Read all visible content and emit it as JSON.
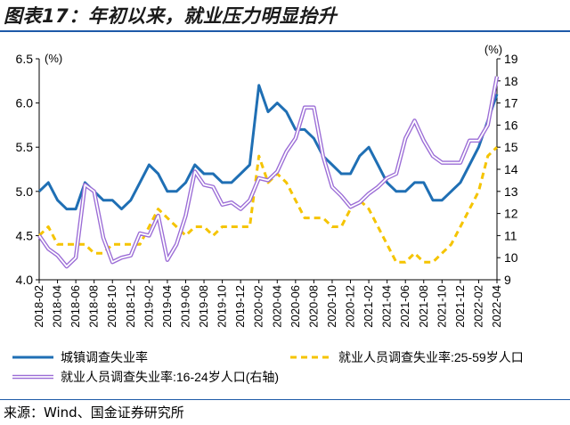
{
  "title": "图表17：年初以来，就业压力明显抬升",
  "source": "来源：Wind、国金证券研究所",
  "chart_data": {
    "type": "line",
    "left_unit": "(%)",
    "right_unit": "(%)",
    "ylim_left": [
      4.0,
      6.5
    ],
    "yticks_left": [
      "4.0",
      "4.5",
      "5.0",
      "5.5",
      "6.0",
      "6.5"
    ],
    "ylim_right": [
      9,
      19
    ],
    "yticks_right": [
      "9",
      "10",
      "11",
      "12",
      "13",
      "14",
      "15",
      "16",
      "17",
      "18",
      "19"
    ],
    "x_tick_labels": [
      "2018-02",
      "2018-04",
      "2018-06",
      "2018-08",
      "2018-10",
      "2018-12",
      "2019-02",
      "2019-04",
      "2019-06",
      "2019-08",
      "2019-10",
      "2019-12",
      "2020-02",
      "2020-04",
      "2020-06",
      "2020-08",
      "2020-10",
      "2020-12",
      "2021-02",
      "2021-04",
      "2021-06",
      "2021-08",
      "2021-10",
      "2021-12",
      "2022-02",
      "2022-04"
    ],
    "series": [
      {
        "name": "城镇调查失业率",
        "axis": "left",
        "color": "#1f6fb4",
        "style": "solid",
        "values": [
          5.0,
          5.1,
          4.9,
          4.8,
          4.8,
          5.1,
          5.0,
          4.9,
          4.9,
          4.8,
          4.9,
          5.1,
          5.3,
          5.2,
          5.0,
          5.0,
          5.1,
          5.3,
          5.2,
          5.2,
          5.1,
          5.1,
          5.2,
          5.3,
          6.2,
          5.9,
          6.0,
          5.9,
          5.7,
          5.7,
          5.6,
          5.4,
          5.3,
          5.2,
          5.2,
          5.4,
          5.5,
          5.3,
          5.1,
          5.0,
          5.0,
          5.1,
          5.1,
          4.9,
          4.9,
          5.0,
          5.1,
          5.3,
          5.5,
          5.8,
          6.1
        ]
      },
      {
        "name": "就业人员调查失业率:25-59岁人口",
        "axis": "left",
        "color": "#f5c400",
        "style": "dashed",
        "values": [
          4.5,
          4.6,
          4.4,
          4.4,
          4.4,
          4.4,
          4.3,
          4.3,
          4.4,
          4.4,
          4.4,
          4.4,
          4.6,
          4.8,
          4.7,
          4.6,
          4.5,
          4.6,
          4.6,
          4.5,
          4.6,
          4.6,
          4.6,
          4.6,
          5.4,
          5.1,
          5.2,
          5.1,
          4.9,
          4.7,
          4.7,
          4.7,
          4.6,
          4.6,
          4.8,
          4.9,
          4.8,
          4.6,
          4.4,
          4.2,
          4.2,
          4.3,
          4.2,
          4.2,
          4.3,
          4.4,
          4.6,
          4.8,
          5.0,
          5.4,
          5.5
        ]
      },
      {
        "name": "就业人员调查失业率:16-24岁人口(右轴)",
        "axis": "right",
        "color": "#9b6cd6",
        "style": "double",
        "values": [
          11.0,
          10.4,
          10.1,
          9.6,
          10.0,
          13.3,
          13.0,
          10.9,
          9.8,
          10.0,
          10.1,
          11.1,
          11.0,
          11.9,
          9.9,
          10.6,
          11.9,
          13.9,
          13.3,
          13.2,
          12.4,
          12.5,
          12.2,
          12.6,
          13.6,
          13.5,
          13.9,
          14.8,
          15.4,
          16.8,
          16.8,
          14.6,
          13.2,
          12.8,
          12.3,
          12.5,
          12.9,
          13.2,
          13.6,
          13.8,
          15.4,
          16.2,
          15.3,
          14.6,
          14.3,
          14.3,
          14.3,
          15.3,
          15.3,
          16.0,
          18.2
        ]
      }
    ],
    "legend": [
      {
        "label": "城镇调查失业率",
        "style": "solid"
      },
      {
        "label": "就业人员调查失业率:25-59岁人口",
        "style": "dashed"
      },
      {
        "label": "就业人员调查失业率:16-24岁人口(右轴)",
        "style": "double"
      }
    ]
  }
}
